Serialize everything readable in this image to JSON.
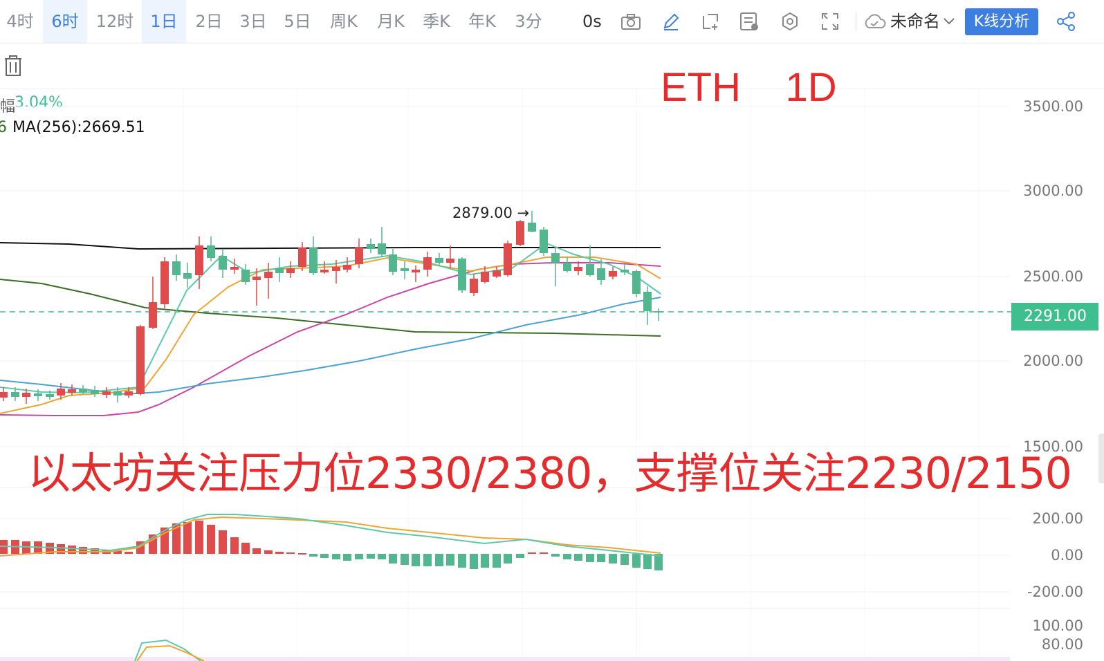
{
  "toolbar": {
    "timeframes": [
      "4时",
      "6时",
      "12时",
      "1日",
      "2日",
      "3日",
      "5日",
      "周K",
      "月K",
      "季K",
      "年K",
      "3分"
    ],
    "active_timeframes": [
      "6时",
      "1日"
    ],
    "countdown": "0s",
    "layout_name": "未命名",
    "analysis_button": "K线分析",
    "icons": [
      "camera-icon",
      "pencil-icon",
      "crop-icon",
      "indicator-icon",
      "settings-icon",
      "fullscreen-icon",
      "cloud-icon",
      "chevron-down-icon",
      "share-icon"
    ]
  },
  "info": {
    "change_label": "幅",
    "change_value": "3.04%",
    "ma_prefix": "6",
    "ma_label": "MA(256):2669.51"
  },
  "overlay": {
    "title": "ETH    1D",
    "note": "以太坊关注压力位2330/2380，支撑位关注2230/2150"
  },
  "price_axis": [
    "3500.00",
    "3000.00",
    "2500.00",
    "2000.00",
    "1500.00"
  ],
  "current_price": "2291.00",
  "high_annotation": "2879.00 →",
  "macd_axis": [
    "200.00",
    "0.00",
    "-200.00"
  ],
  "kdj_axis": [
    "100.00",
    "80.00"
  ],
  "colors": {
    "up": "#e04b4b",
    "down": "#52b78f",
    "accent": "#3d7fe0",
    "overlay_text": "#e52b2b"
  }
}
